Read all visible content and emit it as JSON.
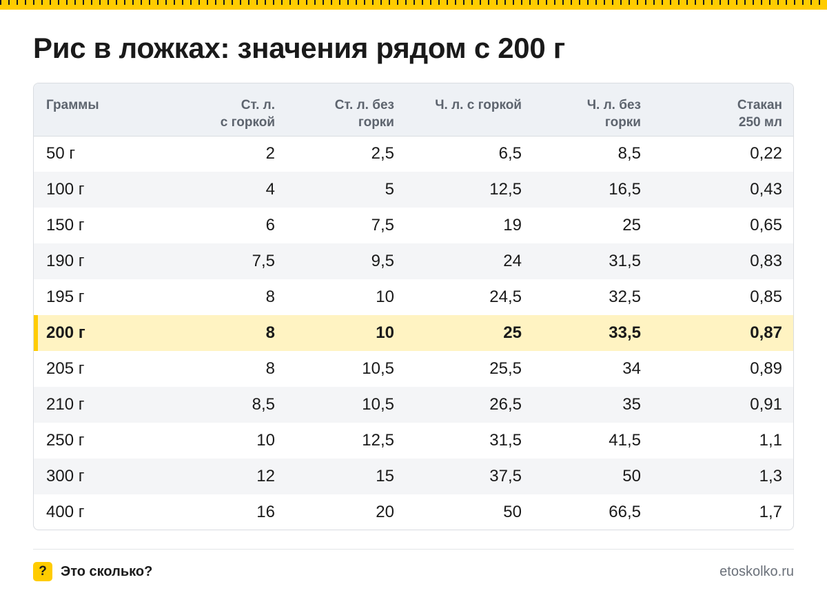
{
  "title": "Рис в ложках: значения рядом с 200 г",
  "accent_color": "#ffcc00",
  "table": {
    "headers": [
      [
        "Граммы"
      ],
      [
        "Ст. л.",
        "с горкой"
      ],
      [
        "Ст. л. без",
        "горки"
      ],
      [
        "Ч. л. с горкой"
      ],
      [
        "Ч. л. без",
        "горки"
      ],
      [
        "Стакан",
        "250 мл"
      ]
    ],
    "highlight_row": 5,
    "rows": [
      [
        "50 г",
        "2",
        "2,5",
        "6,5",
        "8,5",
        "0,22"
      ],
      [
        "100 г",
        "4",
        "5",
        "12,5",
        "16,5",
        "0,43"
      ],
      [
        "150 г",
        "6",
        "7,5",
        "19",
        "25",
        "0,65"
      ],
      [
        "190 г",
        "7,5",
        "9,5",
        "24",
        "31,5",
        "0,83"
      ],
      [
        "195 г",
        "8",
        "10",
        "24,5",
        "32,5",
        "0,85"
      ],
      [
        "200 г",
        "8",
        "10",
        "25",
        "33,5",
        "0,87"
      ],
      [
        "205 г",
        "8",
        "10,5",
        "25,5",
        "34",
        "0,89"
      ],
      [
        "210 г",
        "8,5",
        "10,5",
        "26,5",
        "35",
        "0,91"
      ],
      [
        "250 г",
        "10",
        "12,5",
        "31,5",
        "41,5",
        "1,1"
      ],
      [
        "300 г",
        "12",
        "15",
        "37,5",
        "50",
        "1,3"
      ],
      [
        "400 г",
        "16",
        "20",
        "50",
        "66,5",
        "1,7"
      ]
    ]
  },
  "footer": {
    "logo_icon": "question-mark-icon",
    "logo_glyph": "?",
    "brand": "Это сколько?",
    "site": "etoskolko.ru"
  }
}
